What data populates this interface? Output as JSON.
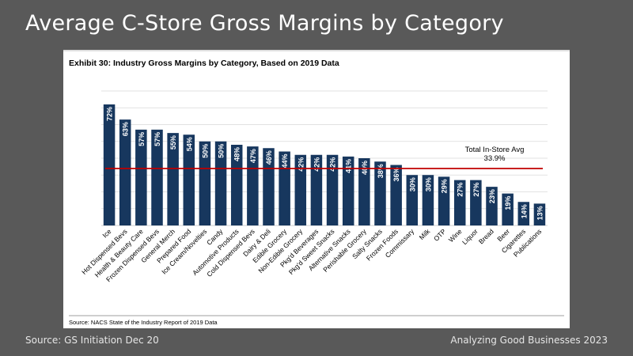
{
  "slide": {
    "title": "Average C-Store Gross Margins by Category",
    "footer_left": "Source: GS Initiation Dec 20",
    "footer_right": "Analyzing Good Businesses 2023"
  },
  "colors": {
    "bar": "#17375e",
    "avg_line": "#c00000",
    "grid": "#d9d9d9",
    "background": "#595959"
  },
  "chart_data": {
    "type": "bar",
    "title": "Exhibit 30: Industry Gross Margins by Category, Based on 2019 Data",
    "source": "Source: NACS State of the Industry Report of 2019 Data",
    "categories": [
      "Ice",
      "Hot Dispensed Bevs",
      "Health & Beauty Care",
      "Frozen Dispensed Bevs",
      "General Merch",
      "Prepared Food",
      "Ice Cream/Novelties",
      "Candy",
      "Automotive Products",
      "Cold Dispensed Bevs",
      "Dairy & Deli",
      "Edible Grocery",
      "Non-Edible Grocery",
      "Pkg'd Beverages",
      "Pkg'd Sweet Snacks",
      "Alternative Snacks",
      "Perishable Grocery",
      "Salty Snacks",
      "Frozen Foods",
      "Commissary",
      "Milk",
      "OTP",
      "Wine",
      "Liquor",
      "Bread",
      "Beer",
      "Cigarettes",
      "Publications"
    ],
    "values": [
      72,
      63,
      57,
      57,
      55,
      54,
      50,
      50,
      48,
      47,
      46,
      44,
      42,
      42,
      42,
      41,
      40,
      38,
      36,
      30,
      30,
      29,
      27,
      27,
      23,
      19,
      14,
      13
    ],
    "labels": [
      "72%",
      "63%",
      "57%",
      "57%",
      "55%",
      "54%",
      "50%",
      "50%",
      "48%",
      "47%",
      "46%",
      "44%",
      "42%",
      "42%",
      "42%",
      "41%",
      "40%",
      "38%",
      "36%",
      "30%",
      "30%",
      "29%",
      "27%",
      "27%",
      "23%",
      "19%",
      "14%",
      "13%"
    ],
    "average": {
      "label": "Total In-Store Avg",
      "value": 33.9,
      "value_label": "33.9%"
    },
    "ylim": [
      0,
      80
    ],
    "grid": true,
    "xlabel": "",
    "ylabel": ""
  }
}
